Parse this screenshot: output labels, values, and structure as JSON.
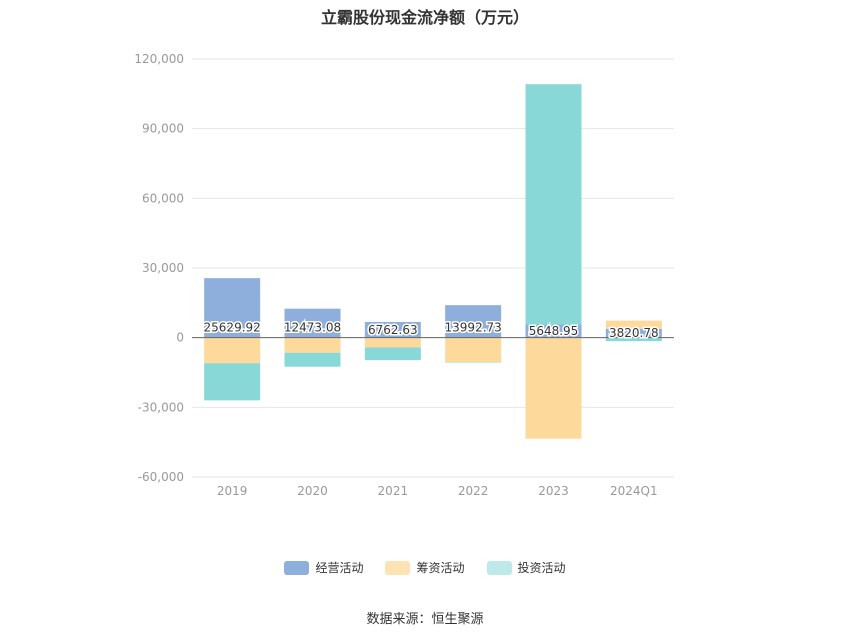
{
  "chart_data": {
    "type": "bar",
    "stacked": true,
    "title": "立霸股份现金流净额（万元）",
    "categories": [
      "2019",
      "2020",
      "2021",
      "2022",
      "2023",
      "2024Q1"
    ],
    "series": [
      {
        "name": "经营活动",
        "color": "#8eaedb",
        "values": [
          25629.92,
          12473.08,
          6762.63,
          13992.73,
          5648.95,
          3820.78
        ],
        "labels": [
          "25629.92",
          "12473.08",
          "6762.63",
          "13992.73",
          "5648.95",
          "3820.78"
        ]
      },
      {
        "name": "筹资活动",
        "color": "#fdd99c",
        "values": [
          -11000,
          -6500,
          -4200,
          -10500,
          -43500,
          3500
        ]
      },
      {
        "name": "投资活动",
        "color": "#88d8d8",
        "values": [
          -16000,
          -6000,
          -5500,
          -200,
          103500,
          -1500
        ]
      }
    ],
    "ylim": [
      -60000,
      120000
    ],
    "yticks": [
      -60000,
      -30000,
      0,
      30000,
      60000,
      90000,
      120000
    ],
    "ytick_labels": [
      "-60,000",
      "-30,000",
      "0",
      "30,000",
      "60,000",
      "90,000",
      "120,000"
    ],
    "grid": true,
    "legend_position": "bottom"
  },
  "legend": {
    "items": [
      {
        "label": "经营活动",
        "color": "#8eaedb"
      },
      {
        "label": "筹资活动",
        "color": "#fde2b4"
      },
      {
        "label": "投资活动",
        "color": "#bfe9e9"
      }
    ]
  },
  "source": "数据来源：恒生聚源"
}
